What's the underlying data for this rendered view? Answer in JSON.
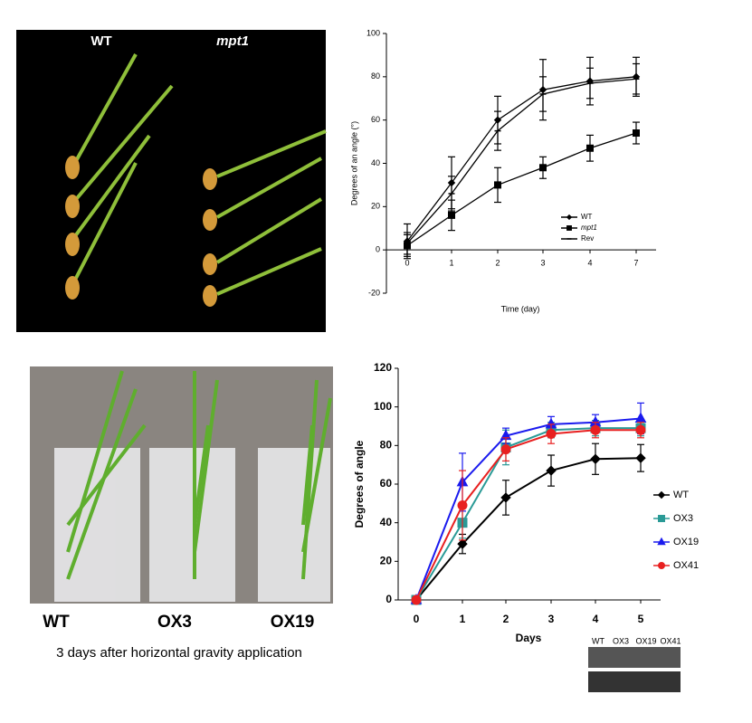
{
  "photos": [
    {
      "labels": [
        "WT",
        "mpt1"
      ]
    },
    {
      "labels": [
        "WT",
        "OX3",
        "OX19"
      ],
      "caption": "3 days after horizontal gravity application"
    }
  ],
  "blot": {
    "lanes": [
      "WT",
      "OX3",
      "OX19",
      "OX41"
    ]
  },
  "chart_data": [
    {
      "type": "line",
      "ylabel": "Degrees of an angle (°)",
      "xlabel": "Time (day)",
      "categories": [
        "0",
        "1",
        "2",
        "3",
        "4",
        "7"
      ],
      "ylim": [
        -20,
        100
      ],
      "yticks": [
        -20,
        0,
        20,
        40,
        60,
        80,
        100
      ],
      "series": [
        {
          "name": "WT",
          "color": "#000000",
          "marker": "diamond",
          "values": [
            4,
            31,
            60,
            74,
            78,
            80
          ],
          "errors": [
            8,
            12,
            11,
            14,
            11,
            9
          ]
        },
        {
          "name": "mpt1",
          "color": "#000000",
          "marker": "square",
          "values": [
            2,
            16,
            30,
            38,
            47,
            54
          ],
          "errors": [
            5,
            7,
            8,
            5,
            6,
            5
          ]
        },
        {
          "name": "Rev",
          "color": "#000000",
          "marker": "dash",
          "values": [
            3,
            26,
            55,
            72,
            77,
            79
          ],
          "errors": [
            5,
            8,
            9,
            8,
            7,
            7
          ]
        }
      ]
    },
    {
      "type": "line",
      "ylabel": "Degrees of angle",
      "xlabel": "Days",
      "categories": [
        "0",
        "1",
        "2",
        "3",
        "4",
        "5"
      ],
      "ylim": [
        0,
        120
      ],
      "yticks": [
        0,
        20,
        40,
        60,
        80,
        100,
        120
      ],
      "series": [
        {
          "name": "WT",
          "color": "#000000",
          "marker": "diamond",
          "values": [
            0,
            29,
            53,
            67,
            73,
            73.5
          ],
          "errors": [
            0,
            5,
            9,
            8,
            8,
            7
          ]
        },
        {
          "name": "OX3",
          "color": "#2a9a96",
          "marker": "square",
          "values": [
            0,
            40,
            79,
            88,
            89,
            89
          ],
          "errors": [
            0,
            8,
            9,
            4,
            4,
            4
          ]
        },
        {
          "name": "OX19",
          "color": "#1a1aee",
          "marker": "triangle",
          "values": [
            0,
            61,
            85,
            91,
            92,
            94
          ],
          "errors": [
            0,
            15,
            4,
            4,
            4,
            8
          ]
        },
        {
          "name": "OX41",
          "color": "#e82020",
          "marker": "circle",
          "values": [
            0,
            49,
            78,
            86,
            88,
            88
          ],
          "errors": [
            0,
            18,
            6,
            5,
            4,
            4
          ]
        }
      ]
    }
  ]
}
